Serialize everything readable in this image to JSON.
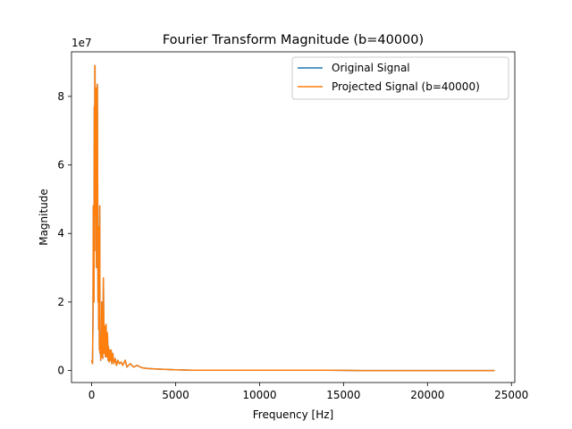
{
  "chart_data": {
    "type": "line",
    "title": "Fourier Transform Magnitude (b=40000)",
    "xlabel": "Frequency [Hz]",
    "ylabel": "Magnitude",
    "y_multiplier_label": "1e7",
    "xlim": [
      -1200,
      25200
    ],
    "ylim": [
      -0.35,
      9.3
    ],
    "x_ticks": [
      0,
      5000,
      10000,
      15000,
      20000,
      25000
    ],
    "x_tick_labels": [
      "0",
      "5000",
      "10000",
      "15000",
      "20000",
      "25000"
    ],
    "y_ticks": [
      0,
      2,
      4,
      6,
      8
    ],
    "y_tick_labels": [
      "0",
      "2",
      "4",
      "6",
      "8"
    ],
    "grid": false,
    "legend_position": "upper right",
    "series": [
      {
        "name": "Original Signal",
        "color": "#1f77b4",
        "x": [
          0,
          50,
          80,
          100,
          140,
          160,
          180,
          190,
          200,
          220,
          240,
          260,
          280,
          300,
          320,
          340,
          360,
          380,
          400,
          420,
          440,
          460,
          480,
          500,
          520,
          540,
          560,
          580,
          600,
          620,
          640,
          660,
          700,
          740,
          780,
          820,
          860,
          900,
          940,
          980,
          1000,
          1040,
          1080,
          1120,
          1160,
          1200,
          1260,
          1320,
          1400,
          1480,
          1560,
          1650,
          1750,
          1850,
          2000,
          2100,
          2300,
          2500,
          2700,
          3000,
          3300,
          3600,
          4000,
          4500,
          5000,
          6000,
          7000,
          8000,
          10000,
          12000,
          14000,
          16000,
          18000,
          20000,
          22000,
          24000
        ],
        "y": [
          0.3,
          0.2,
          1.5,
          4.8,
          2.0,
          7.7,
          3.5,
          8.9,
          8.9,
          5.5,
          4.5,
          8.25,
          3.0,
          7.0,
          6.0,
          8.35,
          5.0,
          2.0,
          4.2,
          1.2,
          3.0,
          0.6,
          4.8,
          0.5,
          1.0,
          0.3,
          0.8,
          0.4,
          2.0,
          0.5,
          1.2,
          0.35,
          2.7,
          0.5,
          1.3,
          0.4,
          1.35,
          0.4,
          1.1,
          0.3,
          0.7,
          0.25,
          0.6,
          0.3,
          0.6,
          0.2,
          0.5,
          0.2,
          0.35,
          0.15,
          0.3,
          0.2,
          0.25,
          0.15,
          0.3,
          0.1,
          0.2,
          0.1,
          0.15,
          0.08,
          0.06,
          0.05,
          0.04,
          0.03,
          0.02,
          0.01,
          0.01,
          0.01,
          0.01,
          0.01,
          0.01,
          0.0,
          0.0,
          0.0,
          0.0,
          0.0
        ]
      },
      {
        "name": "Projected Signal (b=40000)",
        "color": "#ff7f0e",
        "x": [
          0,
          50,
          80,
          100,
          140,
          160,
          180,
          190,
          200,
          220,
          240,
          260,
          280,
          300,
          320,
          340,
          360,
          380,
          400,
          420,
          440,
          460,
          480,
          500,
          520,
          540,
          560,
          580,
          600,
          620,
          640,
          660,
          700,
          740,
          780,
          820,
          860,
          900,
          940,
          980,
          1000,
          1040,
          1080,
          1120,
          1160,
          1200,
          1260,
          1320,
          1400,
          1480,
          1560,
          1650,
          1750,
          1850,
          2000,
          2100,
          2300,
          2500,
          2700,
          3000,
          3300,
          3600,
          4000,
          4500,
          5000,
          6000,
          7000,
          8000,
          10000,
          12000,
          14000,
          16000,
          18000,
          20000,
          22000,
          24000
        ],
        "y": [
          0.3,
          0.2,
          1.5,
          4.8,
          2.0,
          7.7,
          3.5,
          8.9,
          8.9,
          5.5,
          4.5,
          8.25,
          3.0,
          7.0,
          6.0,
          8.35,
          5.0,
          2.0,
          4.2,
          1.2,
          3.0,
          0.6,
          4.8,
          0.5,
          1.0,
          0.3,
          0.8,
          0.4,
          2.0,
          0.5,
          1.2,
          0.35,
          2.7,
          0.5,
          1.3,
          0.4,
          1.35,
          0.4,
          1.1,
          0.3,
          0.7,
          0.25,
          0.6,
          0.3,
          0.6,
          0.2,
          0.5,
          0.2,
          0.35,
          0.15,
          0.3,
          0.2,
          0.25,
          0.15,
          0.3,
          0.1,
          0.2,
          0.1,
          0.15,
          0.08,
          0.06,
          0.05,
          0.04,
          0.03,
          0.02,
          0.01,
          0.01,
          0.01,
          0.01,
          0.01,
          0.01,
          0.0,
          0.0,
          0.0,
          0.0,
          0.0
        ]
      }
    ]
  }
}
